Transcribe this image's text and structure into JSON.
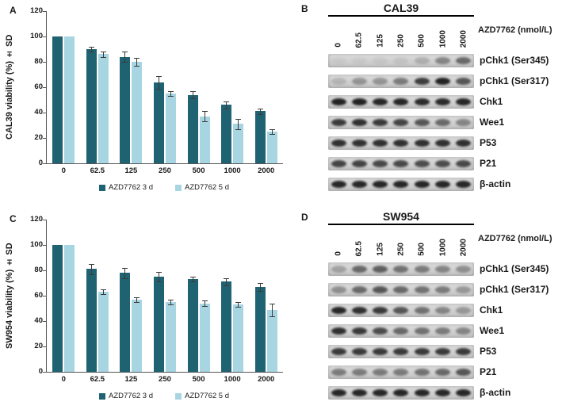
{
  "figure": {
    "panels": {
      "a": {
        "label": "A"
      },
      "b": {
        "label": "B"
      },
      "c": {
        "label": "C"
      },
      "d": {
        "label": "D"
      }
    }
  },
  "colors": {
    "series_3d": "#1f6272",
    "series_5d": "#a8d5e2"
  },
  "chart_data": [
    {
      "type": "bar",
      "panel": "A",
      "title": "",
      "categories": [
        "0",
        "62.5",
        "125",
        "250",
        "500",
        "1000",
        "2000"
      ],
      "series": [
        {
          "name": "AZD7762 3 d",
          "color": "#1f6272",
          "values": [
            100,
            90,
            84,
            64,
            54,
            46,
            41
          ],
          "errors": [
            0,
            2,
            4,
            5,
            3,
            3,
            2
          ]
        },
        {
          "name": "AZD7762 5 d",
          "color": "#a8d5e2",
          "values": [
            100,
            86,
            80,
            55,
            37,
            31,
            25
          ],
          "errors": [
            0,
            2,
            3,
            2,
            4,
            4,
            2
          ]
        }
      ],
      "xlabel": "",
      "ylabel": "CAL39 viability (%) ± SD",
      "ylim": [
        0,
        120
      ],
      "yticks": [
        0,
        20,
        40,
        60,
        80,
        100,
        120
      ],
      "grid": false,
      "legend_position": "bottom"
    },
    {
      "type": "bar",
      "panel": "C",
      "title": "",
      "categories": [
        "0",
        "62.5",
        "125",
        "250",
        "500",
        "1000",
        "2000"
      ],
      "series": [
        {
          "name": "AZD7762 3 d",
          "color": "#1f6272",
          "values": [
            100,
            81,
            78,
            75,
            73,
            71,
            67
          ],
          "errors": [
            0,
            4,
            4,
            4,
            2,
            3,
            3
          ]
        },
        {
          "name": "AZD7762 5 d",
          "color": "#a8d5e2",
          "values": [
            100,
            63,
            57,
            55,
            54,
            53,
            49
          ],
          "errors": [
            0,
            2,
            2,
            2,
            2,
            2,
            5
          ]
        }
      ],
      "xlabel": "",
      "ylabel": "SW954 viability (%) ± SD",
      "ylim": [
        0,
        120
      ],
      "yticks": [
        0,
        20,
        40,
        60,
        80,
        100,
        120
      ],
      "grid": false,
      "legend_position": "bottom"
    }
  ],
  "blots": [
    {
      "panel": "B",
      "title": "CAL39",
      "lane_labels": [
        "0",
        "62.5",
        "125",
        "250",
        "500",
        "1000",
        "2000"
      ],
      "lane_unit": "AZD7762 (nmol/L)",
      "rows": [
        {
          "label": "pChk1 (Ser345)",
          "bands": [
            0.04,
            0.04,
            0.05,
            0.07,
            0.18,
            0.4,
            0.55
          ]
        },
        {
          "label": "pChk1 (Ser317)",
          "bands": [
            0.15,
            0.32,
            0.32,
            0.45,
            0.78,
            0.92,
            0.65
          ]
        },
        {
          "label": "Chk1",
          "bands": [
            0.92,
            0.92,
            0.9,
            0.9,
            0.88,
            0.88,
            0.9
          ]
        },
        {
          "label": "Wee1",
          "bands": [
            0.8,
            0.85,
            0.8,
            0.75,
            0.65,
            0.55,
            0.4
          ]
        },
        {
          "label": "P53",
          "bands": [
            0.85,
            0.85,
            0.85,
            0.85,
            0.85,
            0.85,
            0.85
          ]
        },
        {
          "label": "P21",
          "bands": [
            0.75,
            0.75,
            0.72,
            0.72,
            0.7,
            0.7,
            0.72
          ]
        },
        {
          "label": "β-actin",
          "bands": [
            0.9,
            0.9,
            0.9,
            0.9,
            0.9,
            0.9,
            0.9
          ]
        }
      ]
    },
    {
      "panel": "D",
      "title": "SW954",
      "lane_labels": [
        "0",
        "62.5",
        "125",
        "250",
        "500",
        "1000",
        "2000"
      ],
      "lane_unit": "AZD7762 (nmol/L)",
      "rows": [
        {
          "label": "pChk1 (Ser345)",
          "bands": [
            0.25,
            0.55,
            0.6,
            0.5,
            0.45,
            0.4,
            0.35
          ]
        },
        {
          "label": "pChk1 (Ser317)",
          "bands": [
            0.35,
            0.55,
            0.65,
            0.55,
            0.5,
            0.45,
            0.3
          ]
        },
        {
          "label": "Chk1",
          "bands": [
            0.9,
            0.85,
            0.8,
            0.65,
            0.5,
            0.4,
            0.3
          ]
        },
        {
          "label": "Wee1",
          "bands": [
            0.85,
            0.8,
            0.7,
            0.55,
            0.5,
            0.45,
            0.4
          ]
        },
        {
          "label": "P53",
          "bands": [
            0.8,
            0.8,
            0.8,
            0.8,
            0.8,
            0.8,
            0.8
          ]
        },
        {
          "label": "P21",
          "bands": [
            0.45,
            0.45,
            0.45,
            0.45,
            0.5,
            0.55,
            0.65
          ]
        },
        {
          "label": "β-actin",
          "bands": [
            0.9,
            0.9,
            0.9,
            0.9,
            0.9,
            0.9,
            0.9
          ]
        }
      ]
    }
  ]
}
